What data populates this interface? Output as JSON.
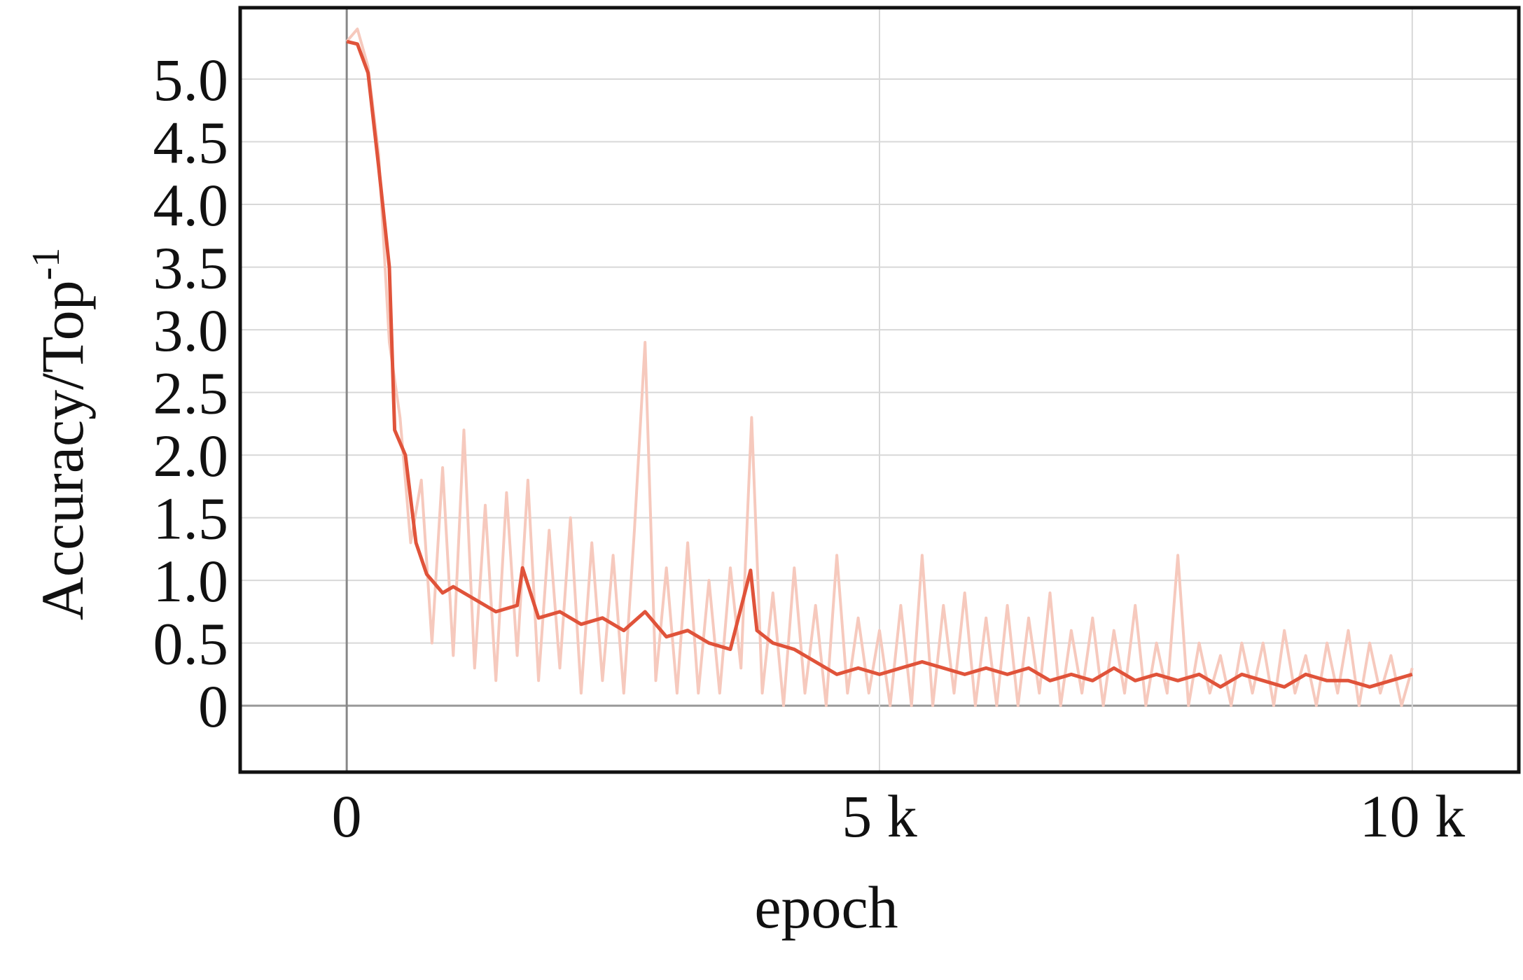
{
  "chart_data": {
    "type": "line",
    "x_label": "epoch",
    "y_label": "Accuracy/Top",
    "y_label_superscript": "-1",
    "xlim": [
      -1000,
      11000
    ],
    "ylim": [
      -0.53,
      5.57
    ],
    "xticks": [
      0,
      {
        "value": 5000,
        "label": "5 k"
      },
      {
        "value": 10000,
        "label": "10 k"
      }
    ],
    "yticks": [
      0,
      0.5,
      {
        "value": 1,
        "label": "1.0"
      },
      1.5,
      {
        "value": 2,
        "label": "2.0"
      },
      2.5,
      {
        "value": 3,
        "label": "3.0"
      },
      3.5,
      {
        "value": 4,
        "label": "4.0"
      },
      4.5,
      {
        "value": 5,
        "label": "5.0"
      }
    ],
    "grid": true,
    "series": [
      {
        "color": "#f6c9bd",
        "x": [
          0,
          100,
          200,
          300,
          400,
          500,
          600,
          700,
          800,
          900,
          1000,
          1100,
          1200,
          1300,
          1400,
          1500,
          1600,
          1700,
          1800,
          1900,
          2000,
          2100,
          2200,
          2300,
          2400,
          2500,
          2600,
          2700,
          2800,
          2900,
          3000,
          3100,
          3200,
          3300,
          3400,
          3500,
          3600,
          3700,
          3800,
          3900,
          4000,
          4100,
          4200,
          4300,
          4400,
          4500,
          4600,
          4700,
          4800,
          4900,
          5000,
          5100,
          5200,
          5300,
          5400,
          5500,
          5600,
          5700,
          5800,
          5900,
          6000,
          6100,
          6200,
          6300,
          6400,
          6500,
          6600,
          6700,
          6800,
          6900,
          7000,
          7100,
          7200,
          7300,
          7400,
          7500,
          7600,
          7700,
          7800,
          7900,
          8000,
          8100,
          8200,
          8300,
          8400,
          8500,
          8600,
          8700,
          8800,
          8900,
          9000,
          9100,
          9200,
          9300,
          9400,
          9500,
          9600,
          9700,
          9800,
          9900,
          10000
        ],
        "values": [
          5.3,
          5.4,
          5.1,
          4.4,
          2.9,
          2.3,
          1.3,
          1.8,
          0.5,
          1.9,
          0.4,
          2.2,
          0.3,
          1.6,
          0.2,
          1.7,
          0.4,
          1.8,
          0.2,
          1.4,
          0.3,
          1.5,
          0.1,
          1.3,
          0.2,
          1.2,
          0.1,
          1.4,
          2.9,
          0.2,
          1.1,
          0.1,
          1.3,
          0.1,
          1.0,
          0.1,
          1.1,
          0.3,
          2.3,
          0.1,
          0.9,
          0.0,
          1.1,
          0.1,
          0.8,
          0.0,
          1.2,
          0.1,
          0.7,
          0.1,
          0.6,
          0.0,
          0.8,
          0.0,
          1.2,
          0.0,
          0.8,
          0.1,
          0.9,
          0.0,
          0.7,
          0.0,
          0.8,
          0.0,
          0.7,
          0.1,
          0.9,
          0.0,
          0.6,
          0.1,
          0.7,
          0.0,
          0.6,
          0.1,
          0.8,
          0.0,
          0.5,
          0.1,
          1.2,
          0.0,
          0.5,
          0.1,
          0.4,
          0.0,
          0.5,
          0.1,
          0.5,
          0.0,
          0.6,
          0.1,
          0.4,
          0.0,
          0.5,
          0.1,
          0.6,
          0.0,
          0.5,
          0.1,
          0.4,
          0.0,
          0.3
        ]
      },
      {
        "color": "#e0533a",
        "x": [
          0,
          100,
          200,
          300,
          400,
          450,
          550,
          650,
          750,
          900,
          1000,
          1200,
          1400,
          1600,
          1650,
          1800,
          2000,
          2200,
          2400,
          2600,
          2800,
          3000,
          3200,
          3400,
          3600,
          3790,
          3850,
          4000,
          4200,
          4400,
          4600,
          4800,
          5000,
          5200,
          5400,
          5600,
          5800,
          6000,
          6200,
          6400,
          6600,
          6800,
          7000,
          7200,
          7400,
          7600,
          7800,
          8000,
          8200,
          8400,
          8600,
          8800,
          9000,
          9200,
          9400,
          9600,
          9800,
          10000
        ],
        "values": [
          5.3,
          5.28,
          5.05,
          4.3,
          3.5,
          2.2,
          2.0,
          1.3,
          1.05,
          0.9,
          0.95,
          0.85,
          0.75,
          0.8,
          1.1,
          0.7,
          0.75,
          0.65,
          0.7,
          0.6,
          0.75,
          0.55,
          0.6,
          0.5,
          0.45,
          1.08,
          0.6,
          0.5,
          0.45,
          0.35,
          0.25,
          0.3,
          0.25,
          0.3,
          0.35,
          0.3,
          0.25,
          0.3,
          0.25,
          0.3,
          0.2,
          0.25,
          0.2,
          0.3,
          0.2,
          0.25,
          0.2,
          0.25,
          0.15,
          0.25,
          0.2,
          0.15,
          0.25,
          0.2,
          0.2,
          0.15,
          0.2,
          0.25
        ]
      }
    ]
  }
}
